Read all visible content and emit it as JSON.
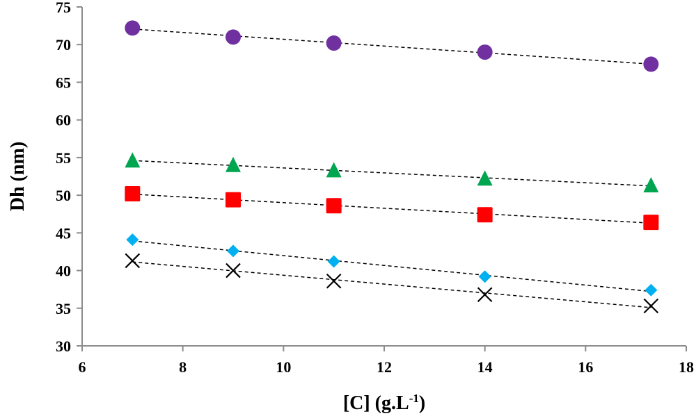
{
  "chart_data": {
    "type": "scatter",
    "title": "",
    "xlabel": "[C] (g.L",
    "xlabel_sup": "-1",
    "xlabel_end": ")",
    "ylabel": "Dh (nm)",
    "xlim": [
      6,
      18
    ],
    "ylim": [
      30,
      75
    ],
    "xticks": [
      6,
      8,
      10,
      12,
      14,
      16,
      18
    ],
    "yticks": [
      30,
      35,
      40,
      45,
      50,
      55,
      60,
      65,
      70,
      75
    ],
    "grid": false,
    "legend": "none",
    "x": [
      7,
      9,
      11,
      14,
      17.3
    ],
    "series": [
      {
        "name": "circle-series",
        "marker": "circle",
        "color": "#7030a0",
        "values": [
          72.2,
          71.0,
          70.2,
          69.0,
          67.4
        ]
      },
      {
        "name": "triangle-series",
        "marker": "triangle",
        "color": "#00a550",
        "values": [
          54.6,
          54.0,
          53.3,
          52.2,
          51.3
        ]
      },
      {
        "name": "square-series",
        "marker": "square",
        "color": "#ff0000",
        "values": [
          50.2,
          49.4,
          48.6,
          47.4,
          46.4
        ]
      },
      {
        "name": "diamond-series",
        "marker": "diamond",
        "color": "#00b0f0",
        "values": [
          44.1,
          42.6,
          41.2,
          39.2,
          37.4
        ]
      },
      {
        "name": "cross-series",
        "marker": "x",
        "color": "#000000",
        "values": [
          41.3,
          40.0,
          38.6,
          36.8,
          35.3
        ]
      }
    ],
    "trendline": "linear-dashed"
  }
}
